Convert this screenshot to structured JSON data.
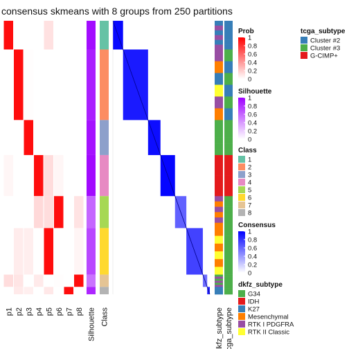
{
  "chart_data": {
    "type": "heatmap",
    "title": "consensus skmeans with 8 groups from 250 partitions",
    "membership_columns": [
      "p1",
      "p2",
      "p3",
      "p4",
      "p5",
      "p6",
      "p7",
      "p8"
    ],
    "annotation_columns": [
      "Silhouette",
      "Class"
    ],
    "right_annotation_columns": [
      "dkfz_subtype",
      "tcga_subtype"
    ],
    "class_blocks": [
      {
        "class": "1",
        "fraction": 0.105,
        "silhouette": 0.95
      },
      {
        "class": "2",
        "fraction": 0.258,
        "silhouette": 0.88
      },
      {
        "class": "3",
        "fraction": 0.128,
        "silhouette": 0.93
      },
      {
        "class": "4",
        "fraction": 0.15,
        "silhouette": 0.96
      },
      {
        "class": "5",
        "fraction": 0.117,
        "silhouette": 0.6
      },
      {
        "class": "6",
        "fraction": 0.17,
        "silhouette": 0.72
      },
      {
        "class": "7",
        "fraction": 0.045,
        "silhouette": 0.55
      },
      {
        "class": "8",
        "fraction": 0.027,
        "silhouette": 0.85
      }
    ],
    "legends": {
      "prob": {
        "title": "Prob",
        "ticks": [
          "1",
          "0.8",
          "0.6",
          "0.4",
          "0.2",
          "0"
        ],
        "colors": [
          "#ffffff",
          "#ff0000"
        ]
      },
      "silhouette": {
        "title": "Silhouette",
        "ticks": [
          "1",
          "0.8",
          "0.6",
          "0.4",
          "0.2",
          "0"
        ],
        "colors": [
          "#ffffff",
          "#9e00ff"
        ]
      },
      "class": {
        "title": "Class",
        "entries": [
          {
            "label": "1",
            "color": "#66c2a5"
          },
          {
            "label": "2",
            "color": "#fc8d62"
          },
          {
            "label": "3",
            "color": "#8da0cb"
          },
          {
            "label": "4",
            "color": "#e78ac3"
          },
          {
            "label": "5",
            "color": "#a6d854"
          },
          {
            "label": "6",
            "color": "#ffd92f"
          },
          {
            "label": "7",
            "color": "#e5c494"
          },
          {
            "label": "8",
            "color": "#b3b3b3"
          }
        ]
      },
      "consensus": {
        "title": "Consensus",
        "ticks": [
          "1",
          "0.8",
          "0.6",
          "0.4",
          "0.2",
          "0"
        ],
        "colors": [
          "#ffffff",
          "#0000ff"
        ]
      },
      "dkfz_subtype": {
        "title": "dkfz_subtype",
        "entries": [
          {
            "label": "G34",
            "color": "#4daf4a"
          },
          {
            "label": "IDH",
            "color": "#e41a1c"
          },
          {
            "label": "K27",
            "color": "#377eb8"
          },
          {
            "label": "Mesenchymal",
            "color": "#ff7f00"
          },
          {
            "label": "RTK I PDGFRA",
            "color": "#984ea3"
          },
          {
            "label": "RTK II Classic",
            "color": "#ffff33"
          }
        ]
      },
      "tcga_subtype": {
        "title": "tcga_subtype",
        "entries": [
          {
            "label": "Cluster #2",
            "color": "#377eb8"
          },
          {
            "label": "Cluster #3",
            "color": "#4daf4a"
          },
          {
            "label": "G-CIMP+",
            "color": "#e41a1c"
          }
        ]
      }
    }
  }
}
